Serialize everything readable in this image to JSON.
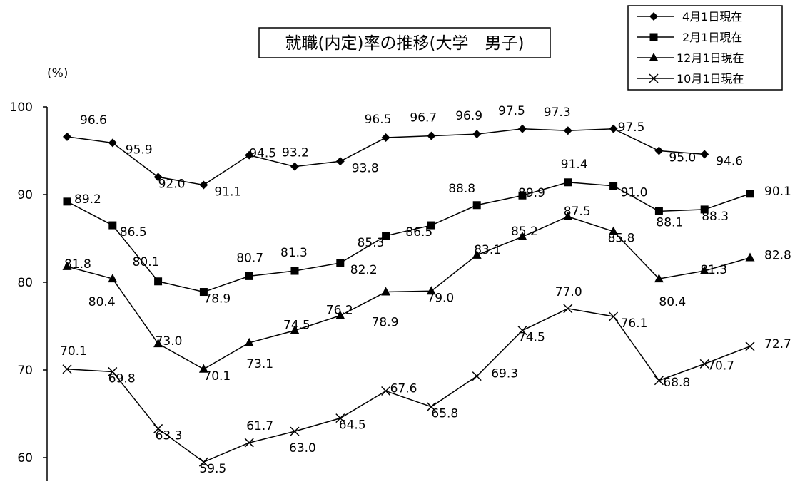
{
  "chart_data": {
    "type": "line",
    "title": "就職(内定)率の推移(大学　男子)",
    "ylabel": "(%)",
    "xlabel": "",
    "ylim": [
      60,
      100
    ],
    "yticks": [
      "100",
      "90",
      "80",
      "70",
      "60"
    ],
    "grid": false,
    "legend_position": "top-right",
    "series": [
      {
        "name": "4月1日現在",
        "marker": "diamond",
        "values": [
          96.6,
          95.9,
          92.0,
          91.1,
          94.5,
          93.2,
          93.8,
          96.5,
          96.7,
          96.9,
          97.5,
          97.3,
          97.5,
          95.0,
          94.6
        ],
        "labels": [
          "96.6",
          "95.9",
          "92.0",
          "91.1",
          "94.5",
          "93.2",
          "93.8",
          "96.5",
          "96.7",
          "96.9",
          "97.5",
          "97.3",
          "97.5",
          "95.0",
          "94.6"
        ]
      },
      {
        "name": "2月1日現在",
        "marker": "square",
        "values": [
          89.2,
          86.5,
          80.1,
          78.9,
          80.7,
          81.3,
          82.2,
          85.3,
          86.5,
          88.8,
          89.9,
          91.4,
          91.0,
          88.1,
          88.3,
          90.1
        ],
        "labels": [
          "89.2",
          "86.5",
          "80.1",
          "78.9",
          "80.7",
          "81.3",
          "82.2",
          "85.3",
          "86.5",
          "88.8",
          "89.9",
          "91.4",
          "91.0",
          "88.1",
          "88.3",
          "90.1"
        ]
      },
      {
        "name": "12月1日現在",
        "marker": "triangle",
        "values": [
          81.8,
          80.4,
          73.0,
          70.1,
          73.1,
          74.5,
          76.2,
          78.9,
          79.0,
          83.1,
          85.2,
          87.5,
          85.8,
          80.4,
          81.3,
          82.8
        ],
        "labels": [
          "81.8",
          "80.4",
          "73.0",
          "70.1",
          "73.1",
          "74.5",
          "76.2",
          "78.9",
          "79.0",
          "83.1",
          "85.2",
          "87.5",
          "85.8",
          "80.4",
          "81.3",
          "82.8"
        ]
      },
      {
        "name": "10月1日現在",
        "marker": "x",
        "values": [
          70.1,
          69.8,
          63.3,
          59.5,
          61.7,
          63.0,
          64.5,
          67.6,
          65.8,
          69.3,
          74.5,
          77.0,
          76.1,
          68.8,
          70.7,
          72.7
        ],
        "labels": [
          "70.1",
          "69.8",
          "63.3",
          "59.5",
          "61.7",
          "63.0",
          "64.5",
          "67.6",
          "65.8",
          "69.3",
          "74.5",
          "77.0",
          "76.1",
          "68.8",
          "70.7",
          "72.7"
        ]
      }
    ]
  }
}
